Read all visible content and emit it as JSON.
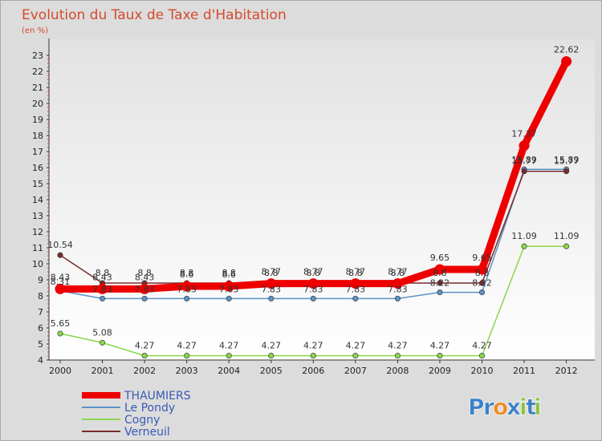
{
  "chart_data": {
    "type": "line",
    "title": "Evolution du Taux de Taxe d'Habitation",
    "subtitle": "(en %)",
    "xlabel": "",
    "ylabel": "",
    "x": [
      "2000",
      "2001",
      "2002",
      "2003",
      "2004",
      "2005",
      "2006",
      "2007",
      "2008",
      "2009",
      "2010",
      "2011",
      "2012"
    ],
    "ylim": [
      4,
      23.5
    ],
    "yticks": [
      4,
      5,
      6,
      7,
      8,
      9,
      10,
      11,
      12,
      13,
      14,
      15,
      16,
      17,
      18,
      19,
      20,
      21,
      22,
      23
    ],
    "grid": false,
    "legend_position": "bottom-left",
    "series": [
      {
        "name": "THAUMIERS",
        "color": "#ee0000",
        "values": [
          8.43,
          8.43,
          8.43,
          8.6,
          8.6,
          8.77,
          8.77,
          8.77,
          8.77,
          9.65,
          9.65,
          17.37,
          22.62
        ],
        "labels": [
          "8.43",
          "8.43",
          "8.43",
          "8.6",
          "8.6",
          "8.77",
          "8.77",
          "8.77",
          "8.77",
          "9.65",
          "9.65",
          "17.37",
          "22.62"
        ]
      },
      {
        "name": "Le Pondy",
        "color": "#5b93c8",
        "values": [
          8.31,
          7.83,
          7.83,
          7.83,
          7.83,
          7.83,
          7.83,
          7.83,
          7.83,
          8.22,
          8.22,
          15.89,
          15.89
        ],
        "labels": [
          "8.31",
          "7.83",
          "7.83",
          "7.83",
          "7.83",
          "7.83",
          "7.83",
          "7.83",
          "7.83",
          "8.22",
          "8.22",
          "15.89",
          "15.89"
        ]
      },
      {
        "name": "Cogny",
        "color": "#88d84a",
        "values": [
          5.65,
          5.08,
          4.27,
          4.27,
          4.27,
          4.27,
          4.27,
          4.27,
          4.27,
          4.27,
          4.27,
          11.09,
          11.09
        ],
        "labels": [
          "5.65",
          "5.08",
          "4.27",
          "4.27",
          "4.27",
          "4.27",
          "4.27",
          "4.27",
          "4.27",
          "4.27",
          "4.27",
          "11.09",
          "11.09"
        ]
      },
      {
        "name": "Verneuil",
        "color": "#7a2a2a",
        "values": [
          10.54,
          8.8,
          8.8,
          8.8,
          8.8,
          8.8,
          8.8,
          8.8,
          8.8,
          8.8,
          8.8,
          15.77,
          15.77
        ],
        "labels": [
          "10.54",
          "8.8",
          "8.8",
          "8.8",
          "8.8",
          "8.8",
          "8.8",
          "8.8",
          "8.8",
          "8.8",
          "8.8",
          "15.77",
          "15.77"
        ]
      }
    ]
  },
  "brand": {
    "logo_text": "Proxiti",
    "letters": [
      "P",
      "r",
      "o",
      "x",
      "i",
      "t",
      "i"
    ],
    "colors": [
      "#3a7fc8",
      "#3a7fc8",
      "#f08a24",
      "#3a7fc8",
      "#8ac43f",
      "#3a7fc8",
      "#8ac43f"
    ]
  }
}
